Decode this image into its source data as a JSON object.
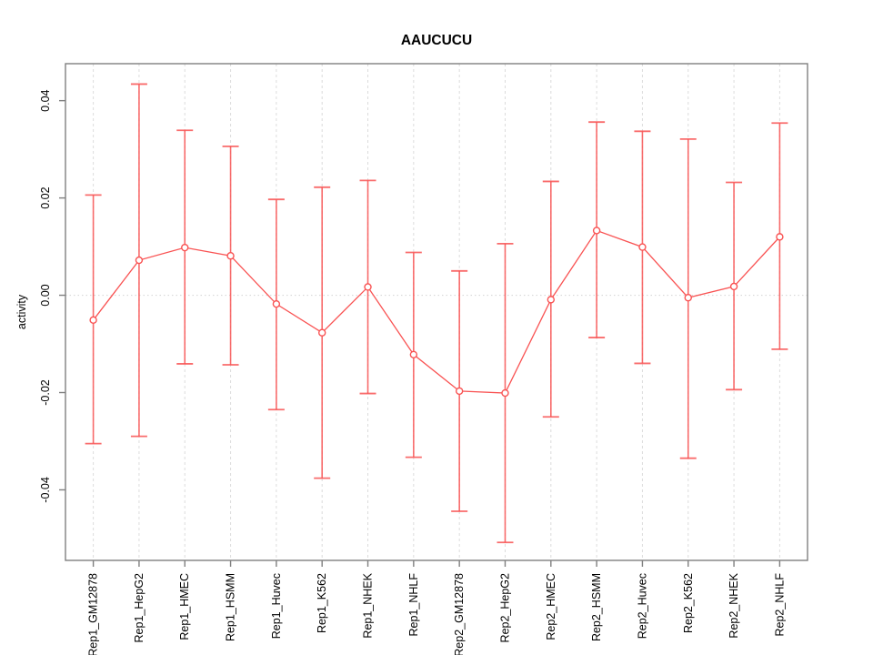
{
  "title": "AAUCUCU",
  "colors": {
    "series": "#f95353",
    "series_light": "#ffb3b3",
    "grid": "#dcdcdc",
    "zero_line": "#d8d8d8",
    "axis": "#7f7f7f",
    "text": "#000000",
    "background": "#ffffff"
  },
  "chart_data": {
    "type": "line",
    "title": "AAUCUCU",
    "xlabel": "",
    "ylabel": "activity",
    "legend": "none",
    "grid": "vertical-dashed-gridlines-per-category, dotted-horizontal-line-at-zero",
    "marker": "open-circle",
    "error_bars": true,
    "ylim": [
      -0.0545,
      0.0476
    ],
    "yticks": [
      0.04,
      0.02,
      0.0,
      -0.02,
      -0.04
    ],
    "ytick_labels": [
      "0.04",
      "0.02",
      "0.00",
      "-0.02",
      "-0.04"
    ],
    "categories": [
      "Rep1_GM12878",
      "Rep1_HepG2",
      "Rep1_HMEC",
      "Rep1_HSMM",
      "Rep1_Huvec",
      "Rep1_K562",
      "Rep1_NHEK",
      "Rep1_NHLF",
      "Rep2_GM12878",
      "Rep2_HepG2",
      "Rep2_HMEC",
      "Rep2_HSMM",
      "Rep2_Huvec",
      "Rep2_K562",
      "Rep2_NHEK",
      "Rep2_NHLF"
    ],
    "series": [
      {
        "name": "activity",
        "values": [
          -0.0051,
          0.0072,
          0.0098,
          0.0081,
          -0.0018,
          -0.0077,
          0.0017,
          -0.0122,
          -0.0197,
          -0.0201,
          -0.0009,
          0.0133,
          0.0099,
          -0.0005,
          0.0018,
          0.012
        ],
        "error_upper": [
          0.0206,
          0.0434,
          0.0339,
          0.0306,
          0.0197,
          0.0222,
          0.0236,
          0.0088,
          0.005,
          0.0106,
          0.0234,
          0.0356,
          0.0337,
          0.0321,
          0.0232,
          0.0354
        ],
        "error_lower": [
          -0.0305,
          -0.029,
          -0.0141,
          -0.0143,
          -0.0235,
          -0.0376,
          -0.0202,
          -0.0333,
          -0.0444,
          -0.0508,
          -0.025,
          -0.0087,
          -0.014,
          -0.0335,
          -0.0194,
          -0.0111
        ]
      }
    ]
  }
}
